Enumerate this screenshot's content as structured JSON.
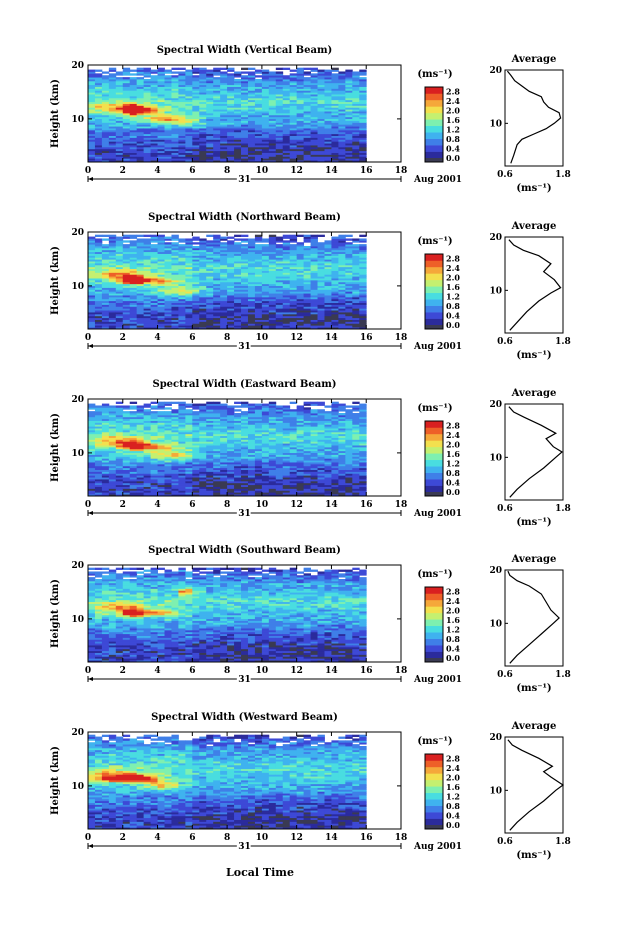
{
  "figure": {
    "x_axis_label": "Local Time",
    "date_label": "Aug 2001",
    "day_label": "31",
    "cbar_unit_label": "(ms⁻¹)",
    "profile_title": "Average",
    "profile_unit_label": "(ms⁻¹)",
    "y_axis_label": "Height (km)"
  },
  "colors": {
    "colormap": [
      "#2b2b9c",
      "#3d49d6",
      "#3f7fe8",
      "#3fb2ef",
      "#49dde0",
      "#7ef0b0",
      "#c4f070",
      "#f3e04e",
      "#f5a83a",
      "#ee6028",
      "#d92020"
    ],
    "background": "#ffffff",
    "cbar_bottom": "#3a3a52"
  },
  "chart_data": [
    {
      "type": "heatmap",
      "title": "Spectral Width (Vertical Beam)",
      "xlabel": "Local Time",
      "ylabel": "Height (km)",
      "xlim": [
        0,
        18
      ],
      "ylim": [
        2,
        20
      ],
      "x_ticks": [
        0,
        2,
        4,
        6,
        8,
        10,
        12,
        14,
        16,
        18
      ],
      "y_ticks": [
        10,
        20
      ],
      "data_x_range": [
        0,
        16
      ],
      "colorbar": {
        "unit": "(ms⁻¹)",
        "ticks": [
          0.0,
          0.4,
          0.8,
          1.2,
          1.6,
          2.0,
          2.4,
          2.8
        ],
        "range": [
          0.0,
          3.0
        ]
      },
      "profile": {
        "title": "Average",
        "xlim": [
          0.6,
          1.8
        ],
        "x_ticks": [
          0.6,
          1.8
        ],
        "ylim": [
          2,
          20
        ],
        "y_ticks": [
          10,
          20
        ],
        "xlabel": "(ms⁻¹)",
        "points": [
          [
            0.72,
            2.5
          ],
          [
            0.78,
            4
          ],
          [
            0.85,
            6
          ],
          [
            0.95,
            7
          ],
          [
            1.2,
            8
          ],
          [
            1.45,
            9
          ],
          [
            1.62,
            10
          ],
          [
            1.75,
            11
          ],
          [
            1.72,
            12
          ],
          [
            1.5,
            13
          ],
          [
            1.4,
            14
          ],
          [
            1.35,
            15
          ],
          [
            1.1,
            16
          ],
          [
            0.95,
            17
          ],
          [
            0.8,
            18
          ],
          [
            0.72,
            19
          ],
          [
            0.65,
            19.8
          ]
        ]
      },
      "hotspots": [
        [
          2.4,
          11.3,
          0.4,
          1.0,
          1.0
        ],
        [
          3.0,
          11.5,
          1.0,
          0.6,
          0.8
        ],
        [
          4.0,
          10.0,
          1.0,
          0.8,
          0.55
        ],
        [
          5.5,
          9.5,
          1.0,
          1.0,
          0.45
        ],
        [
          1.5,
          12.0,
          1.5,
          1.0,
          0.5
        ]
      ]
    },
    {
      "type": "heatmap",
      "title": "Spectral Width (Northward Beam)",
      "xlabel": "Local Time",
      "ylabel": "Height (km)",
      "xlim": [
        0,
        18
      ],
      "ylim": [
        2,
        20
      ],
      "x_ticks": [
        0,
        2,
        4,
        6,
        8,
        10,
        12,
        14,
        16,
        18
      ],
      "y_ticks": [
        10,
        20
      ],
      "data_x_range": [
        0,
        16
      ],
      "colorbar": {
        "unit": "(ms⁻¹)",
        "ticks": [
          0.0,
          0.4,
          0.8,
          1.2,
          1.6,
          2.0,
          2.4,
          2.8
        ],
        "range": [
          0.0,
          3.0
        ]
      },
      "profile": {
        "title": "Average",
        "xlim": [
          0.6,
          1.8
        ],
        "x_ticks": [
          0.6,
          1.8
        ],
        "ylim": [
          2,
          20
        ],
        "y_ticks": [
          10,
          20
        ],
        "xlabel": "(ms⁻¹)",
        "points": [
          [
            0.7,
            2.5
          ],
          [
            0.85,
            4
          ],
          [
            1.05,
            6
          ],
          [
            1.3,
            8
          ],
          [
            1.55,
            9.5
          ],
          [
            1.75,
            10.5
          ],
          [
            1.62,
            12
          ],
          [
            1.4,
            13.5
          ],
          [
            1.55,
            15
          ],
          [
            1.3,
            16.5
          ],
          [
            0.98,
            17.5
          ],
          [
            0.78,
            18.5
          ],
          [
            0.68,
            19.5
          ]
        ]
      },
      "hotspots": [
        [
          2.4,
          11.0,
          0.6,
          0.8,
          0.9
        ],
        [
          3.5,
          10.8,
          1.5,
          0.6,
          0.6
        ],
        [
          5.0,
          9.0,
          1.5,
          1.0,
          0.45
        ],
        [
          1.5,
          12.0,
          1.5,
          1.0,
          0.5
        ]
      ]
    },
    {
      "type": "heatmap",
      "title": "Spectral Width (Eastward Beam)",
      "xlabel": "Local Time",
      "ylabel": "Height (km)",
      "xlim": [
        0,
        18
      ],
      "ylim": [
        2,
        20
      ],
      "x_ticks": [
        0,
        2,
        4,
        6,
        8,
        10,
        12,
        14,
        16,
        18
      ],
      "y_ticks": [
        10,
        20
      ],
      "data_x_range": [
        0,
        16
      ],
      "colorbar": {
        "unit": "(ms⁻¹)",
        "ticks": [
          0.0,
          0.4,
          0.8,
          1.2,
          1.6,
          2.0,
          2.4,
          2.8
        ],
        "range": [
          0.0,
          3.0
        ]
      },
      "profile": {
        "title": "Average",
        "xlim": [
          0.6,
          1.8
        ],
        "x_ticks": [
          0.6,
          1.8
        ],
        "ylim": [
          2,
          20
        ],
        "y_ticks": [
          10,
          20
        ],
        "xlabel": "(ms⁻¹)",
        "points": [
          [
            0.7,
            2.5
          ],
          [
            0.85,
            4
          ],
          [
            1.1,
            6
          ],
          [
            1.4,
            8
          ],
          [
            1.65,
            10
          ],
          [
            1.78,
            11
          ],
          [
            1.6,
            12
          ],
          [
            1.45,
            13.5
          ],
          [
            1.65,
            14.5
          ],
          [
            1.35,
            16
          ],
          [
            1.0,
            17.5
          ],
          [
            0.78,
            18.5
          ],
          [
            0.68,
            19.5
          ]
        ]
      },
      "hotspots": [
        [
          2.4,
          11.3,
          0.6,
          0.8,
          0.9
        ],
        [
          3.5,
          11.0,
          1.5,
          0.6,
          0.6
        ],
        [
          4.5,
          9.5,
          1.5,
          1.0,
          0.45
        ],
        [
          1.5,
          12.0,
          1.5,
          1.0,
          0.5
        ]
      ]
    },
    {
      "type": "heatmap",
      "title": "Spectral Width (Southward Beam)",
      "xlabel": "Local Time",
      "ylabel": "Height (km)",
      "xlim": [
        0,
        18
      ],
      "ylim": [
        2,
        20
      ],
      "x_ticks": [
        0,
        2,
        4,
        6,
        8,
        10,
        12,
        14,
        16,
        18
      ],
      "y_ticks": [
        10,
        20
      ],
      "data_x_range": [
        0,
        16
      ],
      "colorbar": {
        "unit": "(ms⁻¹)",
        "ticks": [
          0.0,
          0.4,
          0.8,
          1.2,
          1.6,
          2.0,
          2.4,
          2.8
        ],
        "range": [
          0.0,
          3.0
        ]
      },
      "profile": {
        "title": "Average",
        "xlim": [
          0.6,
          1.8
        ],
        "x_ticks": [
          0.6,
          1.8
        ],
        "ylim": [
          2,
          20
        ],
        "y_ticks": [
          10,
          20
        ],
        "xlabel": "(ms⁻¹)",
        "points": [
          [
            0.7,
            2.5
          ],
          [
            0.85,
            4
          ],
          [
            1.1,
            6
          ],
          [
            1.35,
            8
          ],
          [
            1.6,
            10
          ],
          [
            1.72,
            11
          ],
          [
            1.55,
            12.5
          ],
          [
            1.45,
            14
          ],
          [
            1.35,
            15.5
          ],
          [
            1.1,
            17
          ],
          [
            0.85,
            18
          ],
          [
            0.7,
            19
          ],
          [
            0.66,
            19.8
          ]
        ]
      },
      "hotspots": [
        [
          2.4,
          11.0,
          0.5,
          0.8,
          0.9
        ],
        [
          5.5,
          15.0,
          0.5,
          0.6,
          0.7
        ],
        [
          3.5,
          11.0,
          1.5,
          0.6,
          0.55
        ],
        [
          1.5,
          12.0,
          1.5,
          1.0,
          0.5
        ]
      ]
    },
    {
      "type": "heatmap",
      "title": "Spectral Width (Westward Beam)",
      "xlabel": "Local Time",
      "ylabel": "Height (km)",
      "xlim": [
        0,
        18
      ],
      "ylim": [
        2,
        20
      ],
      "x_ticks": [
        0,
        2,
        4,
        6,
        8,
        10,
        12,
        14,
        16,
        18
      ],
      "y_ticks": [
        10,
        20
      ],
      "data_x_range": [
        0,
        16
      ],
      "colorbar": {
        "unit": "(ms⁻¹)",
        "ticks": [
          0.0,
          0.4,
          0.8,
          1.2,
          1.6,
          2.0,
          2.4,
          2.8
        ],
        "range": [
          0.0,
          3.0
        ]
      },
      "profile": {
        "title": "Average",
        "xlim": [
          0.6,
          1.8
        ],
        "x_ticks": [
          0.6,
          1.8
        ],
        "ylim": [
          2,
          20
        ],
        "y_ticks": [
          10,
          20
        ],
        "xlabel": "(ms⁻¹)",
        "points": [
          [
            0.7,
            2.5
          ],
          [
            0.85,
            4
          ],
          [
            1.1,
            6
          ],
          [
            1.4,
            8
          ],
          [
            1.65,
            10
          ],
          [
            1.8,
            11
          ],
          [
            1.55,
            12.5
          ],
          [
            1.4,
            13.5
          ],
          [
            1.58,
            14.5
          ],
          [
            1.3,
            16
          ],
          [
            0.95,
            17.5
          ],
          [
            0.75,
            18.5
          ],
          [
            0.66,
            19.5
          ]
        ]
      },
      "hotspots": [
        [
          1.5,
          11.2,
          1.5,
          0.6,
          0.75
        ],
        [
          2.8,
          11.2,
          1.2,
          0.6,
          0.7
        ],
        [
          4.0,
          10.0,
          1.0,
          0.8,
          0.5
        ],
        [
          1.5,
          12.0,
          1.5,
          1.0,
          0.5
        ]
      ]
    }
  ]
}
